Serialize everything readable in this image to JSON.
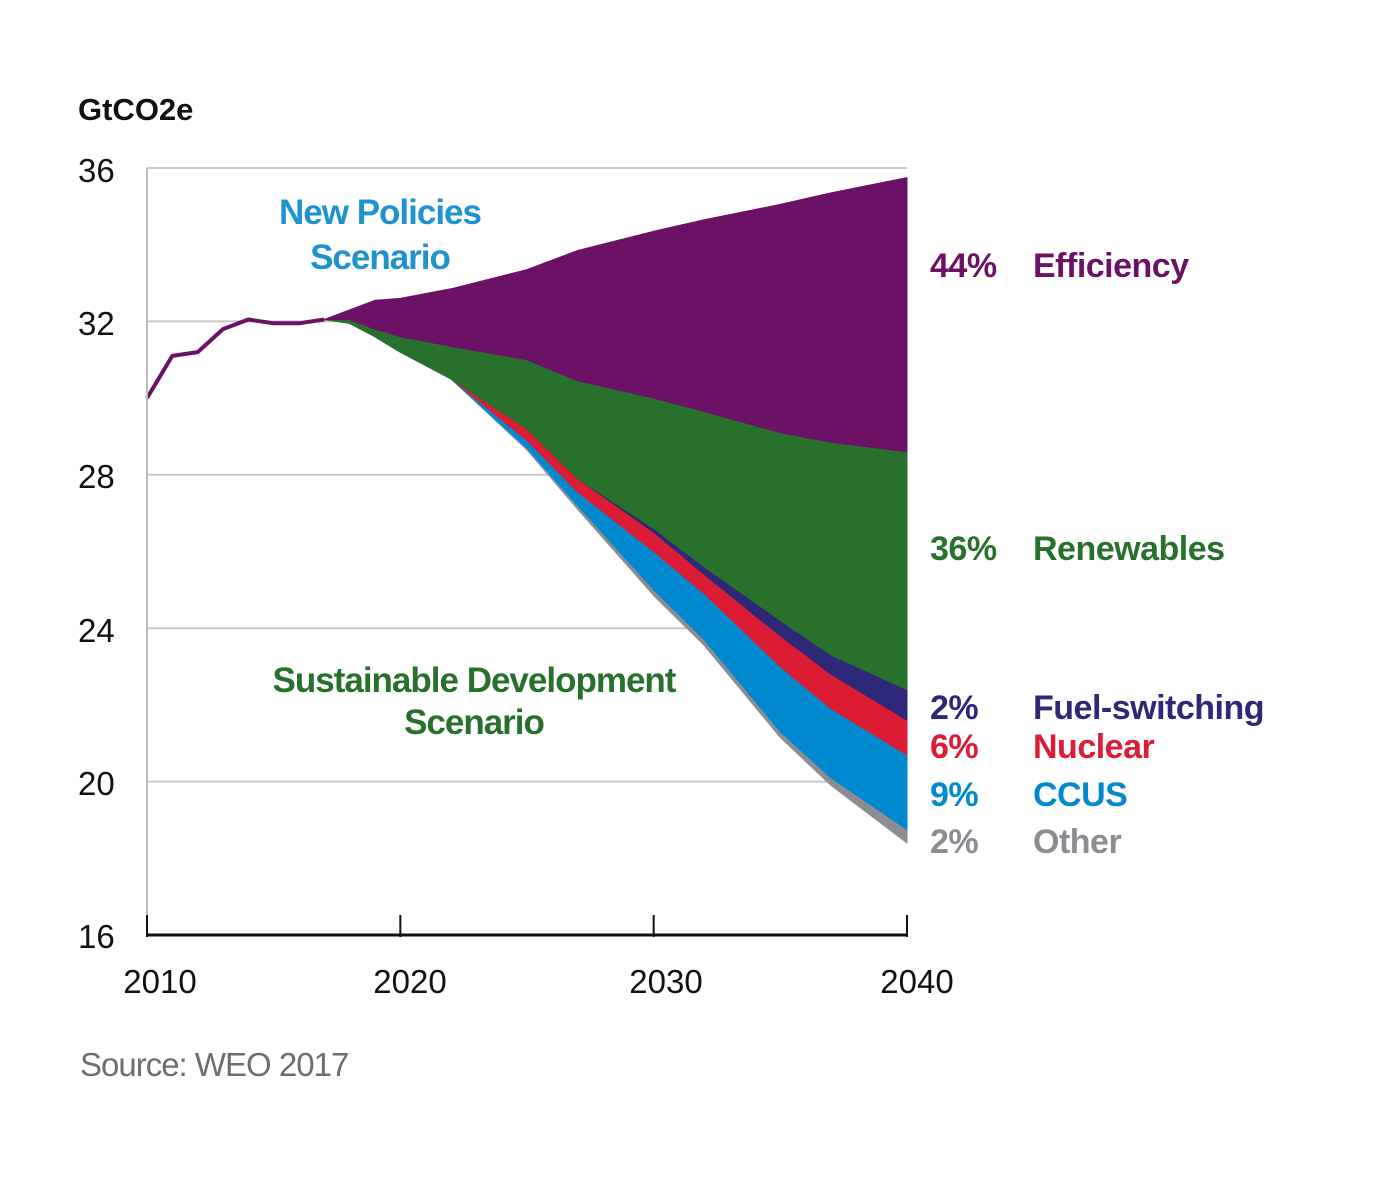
{
  "chart_data": {
    "type": "area",
    "ylabel": "GtCO2e",
    "source": "Source: WEO 2017",
    "xlim": [
      2010,
      2040
    ],
    "ylim": [
      16,
      36
    ],
    "x_ticks": [
      "2010",
      "2020",
      "2030",
      "2040"
    ],
    "y_ticks": [
      "16",
      "20",
      "24",
      "28",
      "32",
      "36"
    ],
    "grid": "horizontal",
    "annotations": {
      "new_policies": [
        "New Policies",
        "Scenario"
      ],
      "sustainable_development": [
        "Sustainable Development",
        "Scenario"
      ]
    },
    "historical": {
      "years": [
        2010,
        2011,
        2012,
        2013,
        2014,
        2015,
        2016,
        2017
      ],
      "values": [
        30.0,
        31.1,
        31.2,
        31.8,
        32.05,
        31.95,
        31.95,
        32.05
      ]
    },
    "years": [
      2017,
      2018,
      2019,
      2020,
      2022,
      2025,
      2027,
      2030,
      2032,
      2035,
      2037,
      2040
    ],
    "new_policies_scenario": [
      32.05,
      32.3,
      32.55,
      32.6,
      32.85,
      33.35,
      33.85,
      34.35,
      34.65,
      35.05,
      35.35,
      35.75
    ],
    "sustainable_development_scenario": [
      32.05,
      31.95,
      31.6,
      31.2,
      30.5,
      28.65,
      27.1,
      24.85,
      23.55,
      21.15,
      19.9,
      18.4
    ],
    "series": [
      {
        "name": "Other",
        "share": "2%",
        "color": "#8b8d92",
        "values": [
          0,
          0,
          0,
          0,
          0,
          0.05,
          0.1,
          0.15,
          0.15,
          0.15,
          0.2,
          0.35
        ]
      },
      {
        "name": "CCUS",
        "share": "9%",
        "color": "#0089cf",
        "values": [
          0,
          0,
          0,
          0,
          0,
          0.2,
          0.35,
          1.0,
          1.2,
          1.7,
          1.8,
          1.95
        ]
      },
      {
        "name": "Nuclear",
        "share": "6%",
        "color": "#dc1c35",
        "values": [
          0,
          0,
          0,
          0,
          0,
          0.3,
          0.35,
          0.5,
          0.5,
          0.8,
          0.9,
          0.9
        ]
      },
      {
        "name": "Fuel-switching",
        "share": "2%",
        "color": "#2e2878",
        "values": [
          0,
          0,
          0,
          0,
          0,
          0,
          0,
          0.1,
          0.2,
          0.4,
          0.5,
          0.8
        ]
      },
      {
        "name": "Renewables",
        "share": "36%",
        "color": "#28712d",
        "values": [
          0,
          0.1,
          0.2,
          0.4,
          0.85,
          1.8,
          2.55,
          3.4,
          4.05,
          4.9,
          5.55,
          6.2
        ]
      },
      {
        "name": "Efficiency",
        "share": "44%",
        "color": "#6b1166",
        "values": [
          0,
          0.25,
          0.75,
          1.0,
          1.5,
          2.35,
          3.4,
          4.35,
          5.0,
          5.95,
          6.5,
          7.15
        ]
      }
    ],
    "colors": {
      "historical_line": "#6b1166",
      "new_policies_label": "#1f92d0",
      "sustainable_development_label": "#28712d",
      "gridline": "#c8c8c8"
    }
  }
}
